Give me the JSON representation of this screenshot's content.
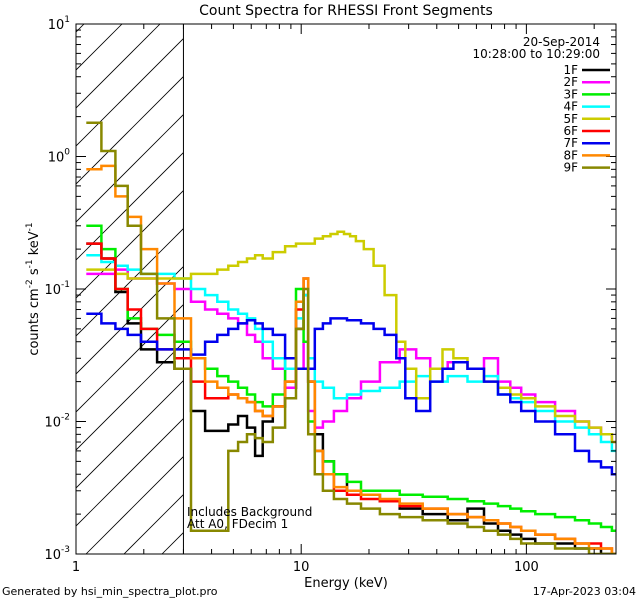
{
  "chart_data": {
    "type": "line",
    "title": "Count Spectra for RHESSI Front Segments",
    "xlabel": "Energy (keV)",
    "ylabel_parts": [
      "counts cm",
      "-2",
      " s",
      "-1",
      " keV",
      "-1"
    ],
    "x_scale": "log",
    "y_scale": "log",
    "xlim": [
      1,
      250
    ],
    "ylim": [
      0.001,
      10
    ],
    "x_ticks": [
      {
        "value": 1,
        "label": "1"
      },
      {
        "value": 10,
        "label": "10"
      },
      {
        "value": 100,
        "label": "100"
      }
    ],
    "y_ticks": [
      {
        "value": 0.001,
        "base": "10",
        "exp": "-3"
      },
      {
        "value": 0.01,
        "base": "10",
        "exp": "-2"
      },
      {
        "value": 0.1,
        "base": "10",
        "exp": "-1"
      },
      {
        "value": 1,
        "base": "10",
        "exp": "0"
      },
      {
        "value": 10,
        "base": "10",
        "exp": "1"
      }
    ],
    "hatched_region": {
      "x_min": 1,
      "x_max": 3
    },
    "header": {
      "date": "20-Sep-2014",
      "time_range": "10:28:00 to 10:29:00"
    },
    "annotations": [
      "Includes Background",
      "Att A0, FDecim 1"
    ],
    "legend_position": "top-right",
    "series": [
      {
        "name": "1F",
        "color": "#000000",
        "x": [
          1.2,
          1.4,
          1.6,
          1.8,
          2.1,
          2.5,
          3,
          3.5,
          4,
          4.5,
          5,
          5.5,
          6,
          6.5,
          7,
          8,
          9,
          10,
          10.5,
          11,
          12,
          13,
          15,
          17,
          20,
          25,
          30,
          40,
          50,
          60,
          70,
          80,
          90,
          100,
          120,
          150,
          180,
          200,
          230,
          250
        ],
        "y": [
          0.22,
          0.17,
          0.095,
          0.055,
          0.035,
          0.028,
          0.025,
          0.012,
          0.0085,
          0.0085,
          0.0095,
          0.011,
          0.009,
          0.0055,
          0.01,
          0.013,
          0.018,
          0.05,
          0.09,
          0.02,
          0.008,
          0.005,
          0.004,
          0.003,
          0.0028,
          0.0025,
          0.0022,
          0.002,
          0.0018,
          0.0022,
          0.0017,
          0.0015,
          0.0014,
          0.0013,
          0.0012,
          0.0012,
          0.0011,
          0.0011,
          0.001,
          0.001
        ]
      },
      {
        "name": "2F",
        "color": "#ff00ff",
        "x": [
          1.2,
          1.4,
          1.6,
          1.8,
          2.1,
          2.5,
          3,
          3.5,
          4,
          4.5,
          5,
          5.5,
          6,
          6.5,
          7,
          8,
          9,
          10,
          10.5,
          11,
          12,
          13,
          15,
          17,
          20,
          25,
          30,
          35,
          40,
          50,
          60,
          70,
          80,
          90,
          100,
          120,
          150,
          180,
          200,
          230,
          250
        ],
        "y": [
          0.13,
          0.13,
          0.14,
          0.12,
          0.12,
          0.11,
          0.1,
          0.08,
          0.07,
          0.065,
          0.06,
          0.055,
          0.045,
          0.04,
          0.03,
          0.025,
          0.018,
          0.025,
          0.04,
          0.012,
          0.009,
          0.01,
          0.012,
          0.015,
          0.02,
          0.028,
          0.035,
          0.03,
          0.025,
          0.028,
          0.025,
          0.03,
          0.02,
          0.018,
          0.016,
          0.014,
          0.012,
          0.01,
          0.009,
          0.008,
          0.007
        ]
      },
      {
        "name": "3F",
        "color": "#00ee00",
        "x": [
          1.2,
          1.4,
          1.6,
          1.8,
          2.1,
          2.5,
          3,
          3.5,
          4,
          4.5,
          5,
          5.5,
          6,
          6.5,
          7,
          8,
          9,
          10,
          10.5,
          11,
          12,
          13,
          15,
          17,
          20,
          25,
          30,
          40,
          50,
          60,
          70,
          80,
          90,
          100,
          120,
          150,
          180,
          200,
          230,
          250
        ],
        "y": [
          0.3,
          0.2,
          0.1,
          0.06,
          0.05,
          0.045,
          0.04,
          0.03,
          0.025,
          0.022,
          0.02,
          0.018,
          0.016,
          0.014,
          0.013,
          0.016,
          0.03,
          0.1,
          0.04,
          0.01,
          0.006,
          0.005,
          0.004,
          0.0035,
          0.003,
          0.003,
          0.0028,
          0.0027,
          0.0026,
          0.0025,
          0.0024,
          0.0023,
          0.0022,
          0.0021,
          0.002,
          0.0019,
          0.0018,
          0.0017,
          0.0016,
          0.0015
        ]
      },
      {
        "name": "4F",
        "color": "#00ffff",
        "x": [
          1.2,
          1.4,
          1.6,
          1.8,
          2.1,
          2.5,
          3,
          3.5,
          4,
          4.5,
          5,
          5.5,
          6,
          6.5,
          7,
          8,
          9,
          10,
          10.5,
          11,
          12,
          13,
          15,
          17,
          20,
          25,
          30,
          35,
          40,
          50,
          60,
          70,
          80,
          90,
          100,
          120,
          150,
          180,
          200,
          230,
          250
        ],
        "y": [
          0.18,
          0.16,
          0.15,
          0.14,
          0.13,
          0.13,
          0.12,
          0.1,
          0.09,
          0.08,
          0.07,
          0.065,
          0.06,
          0.05,
          0.04,
          0.03,
          0.025,
          0.06,
          0.09,
          0.03,
          0.02,
          0.018,
          0.015,
          0.016,
          0.017,
          0.018,
          0.02,
          0.022,
          0.02,
          0.022,
          0.02,
          0.022,
          0.016,
          0.015,
          0.014,
          0.012,
          0.01,
          0.009,
          0.008,
          0.007,
          0.006
        ]
      },
      {
        "name": "5F",
        "color": "#cccc00",
        "x": [
          1.2,
          1.4,
          1.6,
          1.8,
          2.1,
          2.5,
          3,
          3.5,
          4,
          4.5,
          5,
          5.5,
          6,
          6.5,
          7,
          8,
          9,
          10,
          11,
          12,
          13,
          14,
          15,
          16,
          17,
          18,
          20,
          22,
          25,
          28,
          30,
          35,
          40,
          45,
          50,
          60,
          70,
          80,
          90,
          100,
          120,
          150,
          180,
          200,
          230,
          250
        ],
        "y": [
          0.14,
          0.14,
          0.13,
          0.12,
          0.12,
          0.12,
          0.12,
          0.13,
          0.13,
          0.14,
          0.15,
          0.16,
          0.17,
          0.18,
          0.17,
          0.19,
          0.21,
          0.22,
          0.22,
          0.24,
          0.25,
          0.26,
          0.27,
          0.26,
          0.25,
          0.23,
          0.2,
          0.15,
          0.09,
          0.04,
          0.025,
          0.015,
          0.025,
          0.035,
          0.03,
          0.025,
          0.02,
          0.018,
          0.016,
          0.015,
          0.013,
          0.011,
          0.01,
          0.009,
          0.008,
          0.007
        ]
      },
      {
        "name": "6F",
        "color": "#ff0000",
        "x": [
          1.2,
          1.4,
          1.6,
          1.8,
          2.1,
          2.5,
          3,
          3.5,
          4,
          4.5,
          5,
          5.5,
          6,
          6.5,
          7,
          8,
          9,
          10,
          10.5,
          11,
          12,
          13,
          15,
          17,
          20,
          25,
          30,
          40,
          50,
          60,
          70,
          80,
          90,
          100,
          120,
          150,
          180,
          200,
          230,
          250
        ],
        "y": [
          0.22,
          0.17,
          0.1,
          0.07,
          0.05,
          0.035,
          0.03,
          0.02,
          0.015,
          0.015,
          0.016,
          0.015,
          0.014,
          0.012,
          0.011,
          0.013,
          0.02,
          0.07,
          0.12,
          0.02,
          0.006,
          0.004,
          0.003,
          0.0028,
          0.0026,
          0.0025,
          0.0023,
          0.0022,
          0.002,
          0.0019,
          0.0018,
          0.0017,
          0.0016,
          0.0015,
          0.0014,
          0.0013,
          0.0012,
          0.0012,
          0.0011,
          0.001
        ]
      },
      {
        "name": "7F",
        "color": "#0000ee",
        "x": [
          1.2,
          1.4,
          1.6,
          1.8,
          2.1,
          2.5,
          3,
          3.5,
          4,
          4.5,
          5,
          5.5,
          6,
          6.5,
          7,
          8,
          9,
          10,
          11,
          12,
          13,
          14,
          15,
          17,
          20,
          22,
          25,
          28,
          30,
          35,
          40,
          45,
          50,
          60,
          70,
          80,
          90,
          100,
          120,
          150,
          180,
          200,
          230,
          250
        ],
        "y": [
          0.065,
          0.055,
          0.05,
          0.045,
          0.04,
          0.035,
          0.035,
          0.032,
          0.04,
          0.045,
          0.05,
          0.055,
          0.058,
          0.055,
          0.05,
          0.045,
          0.03,
          0.025,
          0.025,
          0.05,
          0.055,
          0.06,
          0.06,
          0.058,
          0.055,
          0.05,
          0.045,
          0.03,
          0.015,
          0.012,
          0.02,
          0.025,
          0.028,
          0.025,
          0.02,
          0.016,
          0.014,
          0.012,
          0.01,
          0.008,
          0.006,
          0.005,
          0.0045,
          0.004
        ]
      },
      {
        "name": "8F",
        "color": "#ff8800",
        "x": [
          1.2,
          1.4,
          1.6,
          1.8,
          2.1,
          2.5,
          3,
          3.5,
          4,
          4.5,
          5,
          5.5,
          6,
          6.5,
          7,
          8,
          9,
          10,
          10.5,
          11,
          12,
          13,
          15,
          17,
          20,
          25,
          30,
          40,
          50,
          60,
          70,
          80,
          90,
          100,
          120,
          150,
          180,
          200,
          230,
          250
        ],
        "y": [
          0.8,
          0.85,
          0.5,
          0.35,
          0.2,
          0.11,
          0.06,
          0.03,
          0.02,
          0.018,
          0.016,
          0.015,
          0.014,
          0.012,
          0.011,
          0.013,
          0.02,
          0.08,
          0.12,
          0.02,
          0.006,
          0.004,
          0.0032,
          0.003,
          0.0028,
          0.0026,
          0.0024,
          0.0022,
          0.002,
          0.0019,
          0.0018,
          0.0017,
          0.0016,
          0.0015,
          0.0014,
          0.0013,
          0.0012,
          0.0011,
          0.0011,
          0.001
        ]
      },
      {
        "name": "9F",
        "color": "#888800",
        "x": [
          1.2,
          1.4,
          1.6,
          1.8,
          2.1,
          2.5,
          3,
          3.5,
          4,
          4.5,
          5,
          5.5,
          6,
          6.5,
          7,
          8,
          9,
          10,
          10.5,
          11,
          12,
          13,
          15,
          17,
          20,
          25,
          30,
          40,
          50,
          60,
          70,
          80,
          90,
          100,
          120,
          150,
          180,
          200,
          230,
          250
        ],
        "y": [
          1.8,
          1.1,
          0.6,
          0.3,
          0.13,
          0.06,
          0.025,
          0.0015,
          0.0015,
          0.0015,
          0.006,
          0.007,
          0.008,
          0.0075,
          0.007,
          0.009,
          0.015,
          0.05,
          0.1,
          0.008,
          0.004,
          0.003,
          0.0026,
          0.0024,
          0.0022,
          0.002,
          0.0019,
          0.0018,
          0.0017,
          0.0016,
          0.0015,
          0.0014,
          0.0013,
          0.0012,
          0.0012,
          0.0011,
          0.0011,
          0.001,
          0.001,
          0.001
        ]
      }
    ]
  },
  "footer": {
    "generator": "Generated by hsi_min_spectra_plot.pro",
    "timestamp": "17-Apr-2023 03:04"
  }
}
